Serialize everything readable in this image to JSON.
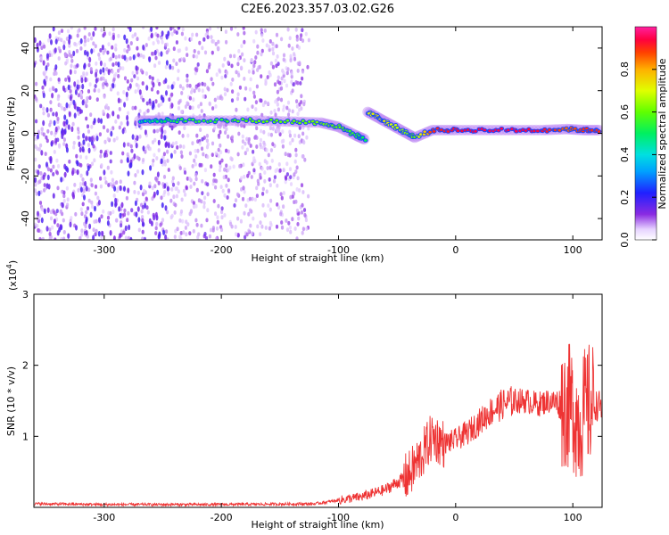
{
  "title": "C2E6.2023.357.03.02.G26",
  "chart_data": [
    {
      "type": "heatmap",
      "xlabel": "Height of straight line (km)",
      "ylabel": "Frequency (Hz)",
      "xlim": [
        -360,
        125
      ],
      "ylim": [
        -50,
        50
      ],
      "xticks": [
        -300,
        -200,
        -100,
        0,
        100
      ],
      "yticks": [
        -40,
        -20,
        0,
        20,
        40
      ],
      "colorbar": {
        "label": "Normalized spectral amplitude",
        "range": [
          0.0,
          1.0
        ],
        "ticks": [
          "0.0",
          "0.2",
          "0.4",
          "0.6",
          "0.8"
        ]
      },
      "ridge": [
        {
          "x": -270,
          "y": 6,
          "v": 0.45
        },
        {
          "x": -250,
          "y": 6,
          "v": 0.5
        },
        {
          "x": -230,
          "y": 6,
          "v": 0.55
        },
        {
          "x": -200,
          "y": 6,
          "v": 0.55
        },
        {
          "x": -170,
          "y": 6,
          "v": 0.6
        },
        {
          "x": -140,
          "y": 5.5,
          "v": 0.6
        },
        {
          "x": -115,
          "y": 5,
          "v": 0.62
        },
        {
          "x": -100,
          "y": 3,
          "v": 0.6
        },
        {
          "x": -85,
          "y": -1,
          "v": 0.55
        },
        {
          "x": -77,
          "y": -3,
          "v": 0.5
        },
        {
          "x": -75,
          "y": 10,
          "v": 0.7
        },
        {
          "x": -65,
          "y": 7,
          "v": 0.75
        },
        {
          "x": -55,
          "y": 4,
          "v": 0.7
        },
        {
          "x": -45,
          "y": 1,
          "v": 0.65
        },
        {
          "x": -35,
          "y": -2,
          "v": 0.6
        },
        {
          "x": -20,
          "y": 1.5,
          "v": 0.9
        },
        {
          "x": 0,
          "y": 1.5,
          "v": 0.93
        },
        {
          "x": 25,
          "y": 1.5,
          "v": 0.95
        },
        {
          "x": 50,
          "y": 1.5,
          "v": 0.95
        },
        {
          "x": 75,
          "y": 1.5,
          "v": 0.93
        },
        {
          "x": 95,
          "y": 2,
          "v": 0.85
        },
        {
          "x": 110,
          "y": 1.5,
          "v": 0.9
        },
        {
          "x": 124,
          "y": 1.5,
          "v": 0.9
        }
      ]
    },
    {
      "type": "line",
      "xlabel": "Height of straight line (km)",
      "ylabel": "SNR (10 * v/v)",
      "yscale_label": "(x10",
      "yscale_exp": "4",
      "yscale_close": ")",
      "xlim": [
        -360,
        125
      ],
      "ylim": [
        0,
        3
      ],
      "xticks": [
        -300,
        -200,
        -100,
        0,
        100
      ],
      "yticks": [
        1,
        2,
        3
      ],
      "color": "#ee3333",
      "series": [
        {
          "x": [
            -360,
            -300,
            -200,
            -120,
            -100,
            -80,
            -60,
            -40,
            -30,
            -20,
            -10,
            0,
            10,
            20,
            30,
            40,
            50,
            60,
            70,
            80,
            90,
            100,
            105,
            110,
            115,
            125
          ],
          "y": [
            0.05,
            0.04,
            0.04,
            0.05,
            0.1,
            0.15,
            0.25,
            0.45,
            0.7,
            1.0,
            0.9,
            0.95,
            1.05,
            1.2,
            1.35,
            1.45,
            1.5,
            1.5,
            1.45,
            1.5,
            1.45,
            1.4,
            1.2,
            1.35,
            1.45,
            1.42
          ]
        }
      ]
    }
  ]
}
